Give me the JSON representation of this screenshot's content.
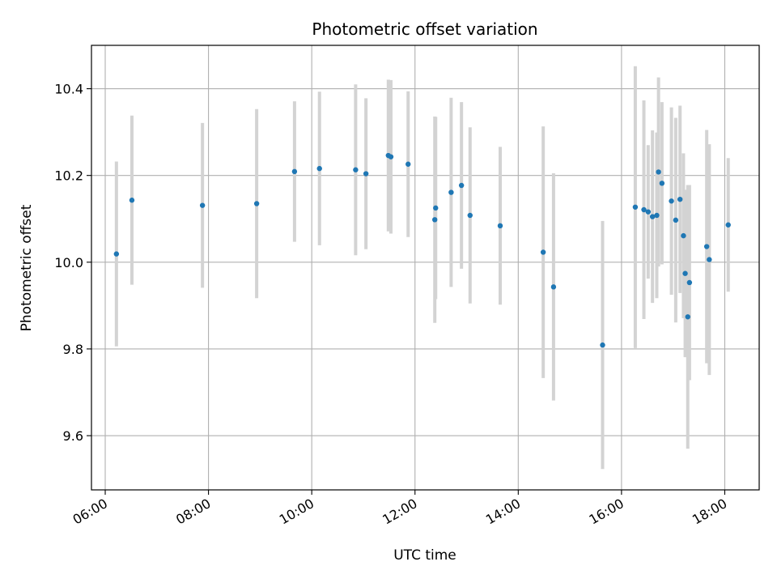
{
  "chart_data": {
    "type": "scatter",
    "title": "Photometric offset variation",
    "xlabel": "UTC time",
    "ylabel": "Photometric offset",
    "x_unit": "time of day (HH:MM, UTC)",
    "xlim": [
      "05:44",
      "18:40"
    ],
    "ylim": [
      9.475,
      10.5
    ],
    "x_ticks": [
      "06:00",
      "08:00",
      "10:00",
      "12:00",
      "14:00",
      "16:00",
      "18:00"
    ],
    "y_ticks": [
      9.6,
      9.8,
      10.0,
      10.2,
      10.4
    ],
    "y_tick_labels": [
      "9.6",
      "9.8",
      "10.0",
      "10.2",
      "10.4"
    ],
    "grid": true,
    "marker_color": "#1f77b4",
    "errorbar_color": "#d3d3d3",
    "series": [
      {
        "points": [
          {
            "x": "06:13",
            "y": 10.019,
            "err": 0.213
          },
          {
            "x": "06:31",
            "y": 10.143,
            "err": 0.195
          },
          {
            "x": "07:53",
            "y": 10.131,
            "err": 0.19
          },
          {
            "x": "08:56",
            "y": 10.135,
            "err": 0.218
          },
          {
            "x": "09:40",
            "y": 10.209,
            "err": 0.162
          },
          {
            "x": "10:09",
            "y": 10.216,
            "err": 0.177
          },
          {
            "x": "10:51",
            "y": 10.213,
            "err": 0.197
          },
          {
            "x": "11:03",
            "y": 10.204,
            "err": 0.174
          },
          {
            "x": "11:29",
            "y": 10.246,
            "err": 0.175
          },
          {
            "x": "11:32",
            "y": 10.243,
            "err": 0.177
          },
          {
            "x": "11:52",
            "y": 10.226,
            "err": 0.168
          },
          {
            "x": "12:23",
            "y": 10.098,
            "err": 0.238
          },
          {
            "x": "12:24",
            "y": 10.125,
            "err": 0.21
          },
          {
            "x": "12:42",
            "y": 10.161,
            "err": 0.218
          },
          {
            "x": "12:54",
            "y": 10.177,
            "err": 0.192
          },
          {
            "x": "13:04",
            "y": 10.108,
            "err": 0.203
          },
          {
            "x": "13:39",
            "y": 10.084,
            "err": 0.182
          },
          {
            "x": "14:29",
            "y": 10.023,
            "err": 0.29
          },
          {
            "x": "14:41",
            "y": 9.943,
            "err": 0.262
          },
          {
            "x": "15:38",
            "y": 9.809,
            "err": 0.286
          },
          {
            "x": "16:16",
            "y": 10.127,
            "err": 0.325
          },
          {
            "x": "16:26",
            "y": 10.121,
            "err": 0.252
          },
          {
            "x": "16:31",
            "y": 10.116,
            "err": 0.154
          },
          {
            "x": "16:36",
            "y": 10.105,
            "err": 0.199
          },
          {
            "x": "16:41",
            "y": 10.108,
            "err": 0.191
          },
          {
            "x": "16:43",
            "y": 10.208,
            "err": 0.218
          },
          {
            "x": "16:47",
            "y": 10.182,
            "err": 0.187
          },
          {
            "x": "16:58",
            "y": 10.141,
            "err": 0.216
          },
          {
            "x": "17:03",
            "y": 10.097,
            "err": 0.236
          },
          {
            "x": "17:08",
            "y": 10.145,
            "err": 0.216
          },
          {
            "x": "17:12",
            "y": 10.061,
            "err": 0.19
          },
          {
            "x": "17:14",
            "y": 9.974,
            "err": 0.193
          },
          {
            "x": "17:17",
            "y": 9.874,
            "err": 0.304
          },
          {
            "x": "17:19",
            "y": 9.953,
            "err": 0.225
          },
          {
            "x": "17:39",
            "y": 10.036,
            "err": 0.269
          },
          {
            "x": "17:42",
            "y": 10.006,
            "err": 0.266
          },
          {
            "x": "18:04",
            "y": 10.086,
            "err": 0.154
          }
        ]
      }
    ]
  }
}
